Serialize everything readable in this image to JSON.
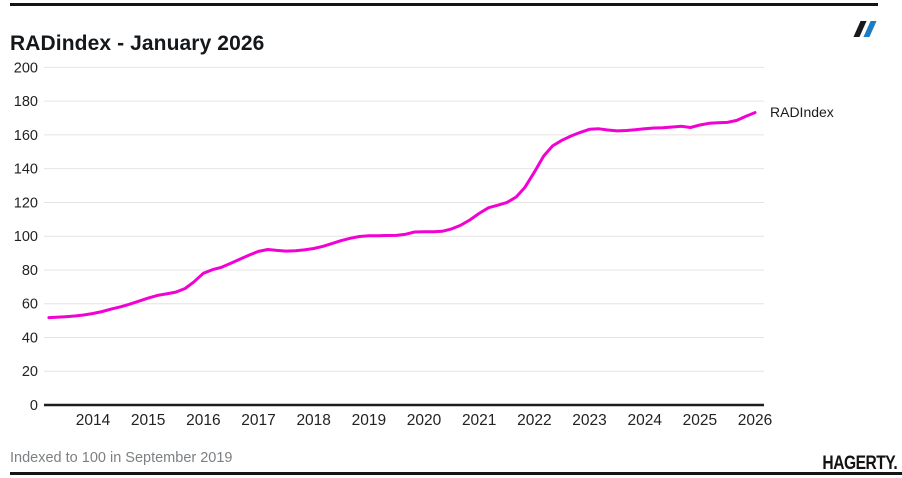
{
  "header": {
    "title": "RADindex - January 2026"
  },
  "chart_data": {
    "type": "line",
    "title": "RADindex - January 2026",
    "xlabel": "",
    "ylabel": "",
    "ylim": [
      0,
      200
    ],
    "xlim": [
      2013.1,
      2026.2
    ],
    "grid": "horizontal",
    "y_ticks": [
      0,
      20,
      40,
      60,
      80,
      100,
      120,
      140,
      160,
      180,
      200
    ],
    "x_ticks": [
      "2014",
      "2015",
      "2016",
      "2017",
      "2018",
      "2019",
      "2020",
      "2021",
      "2022",
      "2023",
      "2024",
      "2025",
      "2026"
    ],
    "x_tick_years": [
      2014,
      2015,
      2016,
      2017,
      2018,
      2019,
      2020,
      2021,
      2022,
      2023,
      2024,
      2025,
      2026
    ],
    "legend_position": "end-of-line",
    "series": [
      {
        "name": "RADIndex",
        "color": "#f201d3",
        "points": [
          [
            2013.2,
            51.8
          ],
          [
            2013.33,
            52.0
          ],
          [
            2013.5,
            52.3
          ],
          [
            2013.67,
            52.7
          ],
          [
            2013.83,
            53.3
          ],
          [
            2014.0,
            54.2
          ],
          [
            2014.17,
            55.4
          ],
          [
            2014.33,
            56.8
          ],
          [
            2014.5,
            58.2
          ],
          [
            2014.67,
            59.8
          ],
          [
            2014.83,
            61.5
          ],
          [
            2015.0,
            63.3
          ],
          [
            2015.17,
            64.9
          ],
          [
            2015.33,
            65.8
          ],
          [
            2015.5,
            66.9
          ],
          [
            2015.67,
            69.0
          ],
          [
            2015.83,
            73.0
          ],
          [
            2016.0,
            78.0
          ],
          [
            2016.17,
            80.2
          ],
          [
            2016.33,
            81.6
          ],
          [
            2016.5,
            84.0
          ],
          [
            2016.67,
            86.5
          ],
          [
            2016.83,
            88.8
          ],
          [
            2017.0,
            91.0
          ],
          [
            2017.17,
            92.1
          ],
          [
            2017.33,
            91.6
          ],
          [
            2017.5,
            91.2
          ],
          [
            2017.67,
            91.4
          ],
          [
            2017.83,
            91.9
          ],
          [
            2018.0,
            92.7
          ],
          [
            2018.17,
            94.0
          ],
          [
            2018.33,
            95.6
          ],
          [
            2018.5,
            97.4
          ],
          [
            2018.67,
            98.8
          ],
          [
            2018.83,
            99.8
          ],
          [
            2019.0,
            100.3
          ],
          [
            2019.17,
            100.3
          ],
          [
            2019.33,
            100.4
          ],
          [
            2019.5,
            100.5
          ],
          [
            2019.67,
            101.2
          ],
          [
            2019.83,
            102.5
          ],
          [
            2020.0,
            102.6
          ],
          [
            2020.17,
            102.6
          ],
          [
            2020.33,
            102.9
          ],
          [
            2020.5,
            104.3
          ],
          [
            2020.67,
            106.6
          ],
          [
            2020.83,
            109.6
          ],
          [
            2021.0,
            113.5
          ],
          [
            2021.17,
            116.9
          ],
          [
            2021.33,
            118.3
          ],
          [
            2021.5,
            119.9
          ],
          [
            2021.67,
            123.2
          ],
          [
            2021.83,
            129.0
          ],
          [
            2022.0,
            138.0
          ],
          [
            2022.17,
            147.5
          ],
          [
            2022.33,
            153.5
          ],
          [
            2022.5,
            156.8
          ],
          [
            2022.67,
            159.4
          ],
          [
            2022.83,
            161.5
          ],
          [
            2023.0,
            163.3
          ],
          [
            2023.17,
            163.6
          ],
          [
            2023.33,
            162.9
          ],
          [
            2023.5,
            162.4
          ],
          [
            2023.67,
            162.6
          ],
          [
            2023.83,
            163.1
          ],
          [
            2024.0,
            163.7
          ],
          [
            2024.17,
            164.1
          ],
          [
            2024.33,
            164.3
          ],
          [
            2024.5,
            164.7
          ],
          [
            2024.67,
            165.1
          ],
          [
            2024.83,
            164.4
          ],
          [
            2025.0,
            165.9
          ],
          [
            2025.17,
            166.9
          ],
          [
            2025.33,
            167.2
          ],
          [
            2025.5,
            167.4
          ],
          [
            2025.67,
            168.6
          ],
          [
            2025.83,
            171.0
          ],
          [
            2026.0,
            173.2
          ]
        ]
      }
    ],
    "annotations": [
      {
        "text": "RADIndex",
        "attached_to": "line-end"
      }
    ]
  },
  "footer": {
    "note": "Indexed to 100 in September 2019",
    "brand": "HAGERTY."
  },
  "colors": {
    "line": "#f201d3",
    "grid": "#e4e4e4",
    "axis": "#1c1c1c",
    "tick_label": "#222222",
    "brand_blue": "#1e7cc2",
    "ink": "#141414",
    "muted_text": "#7d8083"
  }
}
